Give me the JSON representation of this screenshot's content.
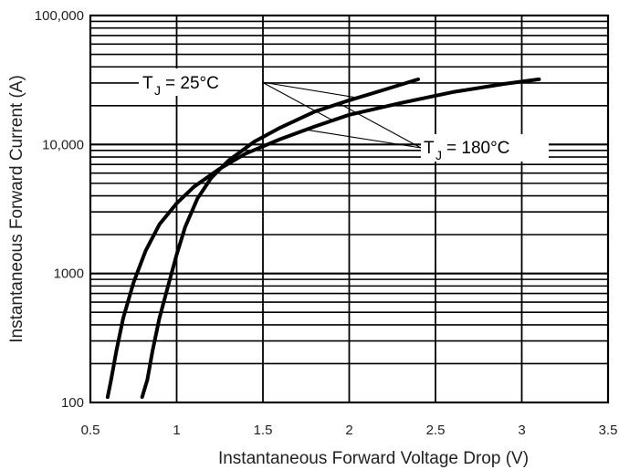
{
  "chart_data": {
    "type": "line",
    "title": "",
    "xlabel": "Instantaneous Forward Voltage Drop (V)",
    "ylabel": "Instantaneous Forward Current (A)",
    "xlim": [
      0.5,
      3.5
    ],
    "ylim": [
      100,
      100000
    ],
    "yscale": "log",
    "grid": true,
    "x_ticks": [
      {
        "v": 0.5,
        "label": "0.5"
      },
      {
        "v": 1.0,
        "label": "1"
      },
      {
        "v": 1.5,
        "label": "1.5"
      },
      {
        "v": 2.0,
        "label": "2"
      },
      {
        "v": 2.5,
        "label": "2.5"
      },
      {
        "v": 3.0,
        "label": "3"
      },
      {
        "v": 3.5,
        "label": "3.5"
      }
    ],
    "y_ticks": [
      {
        "v": 100,
        "label": "100"
      },
      {
        "v": 1000,
        "label": "1000"
      },
      {
        "v": 10000,
        "label": "10,000"
      },
      {
        "v": 100000,
        "label": "100,000"
      }
    ],
    "series": [
      {
        "label_main": "T",
        "label_sub": "J",
        "label_rest": " = 25°C",
        "x": [
          0.8,
          0.83,
          0.86,
          0.9,
          0.95,
          1.0,
          1.05,
          1.12,
          1.2,
          1.3,
          1.45,
          1.6,
          1.8,
          2.0,
          2.2,
          2.4
        ],
        "y": [
          110,
          150,
          250,
          450,
          800,
          1400,
          2300,
          3800,
          5500,
          7500,
          10500,
          13500,
          18000,
          22000,
          26500,
          32000
        ]
      },
      {
        "label_main": "T",
        "label_sub": "J",
        "label_rest": " = 180°C",
        "x": [
          0.6,
          0.62,
          0.65,
          0.69,
          0.75,
          0.82,
          0.9,
          1.0,
          1.1,
          1.25,
          1.4,
          1.6,
          1.8,
          2.0,
          2.3,
          2.6,
          2.9,
          3.1
        ],
        "y": [
          110,
          150,
          250,
          450,
          850,
          1500,
          2400,
          3500,
          4700,
          6500,
          8500,
          11000,
          13800,
          17000,
          21000,
          25500,
          29500,
          32000
        ]
      }
    ]
  }
}
